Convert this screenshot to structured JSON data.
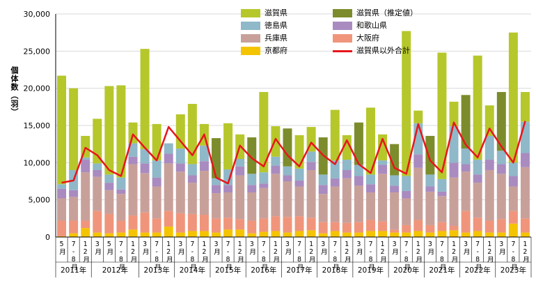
{
  "chart_data": {
    "type": "bar",
    "stacked": true,
    "ylabel": "個体数（羽）",
    "ylim": [
      0,
      30000
    ],
    "yticks": [
      "0",
      "5,000",
      "10,000",
      "15,000",
      "20,000",
      "25,000",
      "30,000"
    ],
    "categories": [
      "5月",
      "7-8月",
      "12月",
      "3月",
      "5月",
      "7-8月",
      "12月",
      "3月",
      "7-8月",
      "12月",
      "3月",
      "7-8月",
      "12月",
      "3月",
      "7-8月",
      "12月",
      "3月",
      "7-8月",
      "12月",
      "3月",
      "7-8月",
      "12月",
      "3月",
      "7-8月",
      "12月",
      "3月",
      "7-8月",
      "12月",
      "3月",
      "7-8月",
      "12月",
      "3月",
      "7-8月",
      "12月",
      "3月",
      "7-8月",
      "12月",
      "3月",
      "7-8月",
      "12月"
    ],
    "year_groups": [
      {
        "label": "2011年",
        "start": 0,
        "count": 3
      },
      {
        "label": "2012年",
        "start": 3,
        "count": 4
      },
      {
        "label": "2013年",
        "start": 7,
        "count": 3
      },
      {
        "label": "2014年",
        "start": 10,
        "count": 3
      },
      {
        "label": "2015年",
        "start": 13,
        "count": 3
      },
      {
        "label": "2016年",
        "start": 16,
        "count": 3
      },
      {
        "label": "2017年",
        "start": 19,
        "count": 3
      },
      {
        "label": "2018年",
        "start": 22,
        "count": 3
      },
      {
        "label": "2019年",
        "start": 25,
        "count": 3
      },
      {
        "label": "2020年",
        "start": 28,
        "count": 3
      },
      {
        "label": "2021年",
        "start": 31,
        "count": 3
      },
      {
        "label": "2022年",
        "start": 34,
        "count": 3
      },
      {
        "label": "2023年",
        "start": 37,
        "count": 3
      }
    ],
    "series": [
      {
        "name": "京都府",
        "color": "#f5c400",
        "values": [
          100,
          500,
          1200,
          600,
          500,
          600,
          1000,
          600,
          600,
          1400,
          600,
          800,
          800,
          600,
          1000,
          1000,
          500,
          700,
          800,
          600,
          800,
          900,
          500,
          800,
          600,
          600,
          800,
          800,
          600,
          600,
          800,
          600,
          800,
          900,
          600,
          800,
          600,
          600,
          1800,
          600
        ]
      },
      {
        "name": "大阪府",
        "color": "#f0957b",
        "values": [
          2100,
          1700,
          1000,
          2900,
          2600,
          1600,
          1900,
          2700,
          1900,
          2100,
          2600,
          2300,
          2200,
          1900,
          1600,
          1400,
          1700,
          1800,
          2000,
          2100,
          2000,
          1700,
          1500,
          1200,
          1300,
          1400,
          1500,
          1300,
          400,
          1000,
          1500,
          1000,
          1200,
          600,
          2900,
          1800,
          1600,
          1800,
          1700,
          1900
        ]
      },
      {
        "name": "兵庫県",
        "color": "#c8a09a",
        "values": [
          3000,
          3200,
          6500,
          4600,
          3200,
          3600,
          6900,
          5300,
          4300,
          6400,
          5600,
          4200,
          5900,
          3400,
          3400,
          5900,
          3800,
          4100,
          5700,
          4800,
          4000,
          6400,
          3800,
          4800,
          6000,
          4900,
          3700,
          6400,
          5000,
          3600,
          7000,
          4500,
          3500,
          6500,
          5300,
          4700,
          6800,
          6100,
          3300,
          6900
        ]
      },
      {
        "name": "和歌山県",
        "color": "#a98bc0",
        "values": [
          1300,
          900,
          1700,
          900,
          1000,
          600,
          1000,
          1300,
          1200,
          1300,
          1100,
          1000,
          1300,
          1100,
          1000,
          1200,
          1000,
          600,
          1100,
          800,
          800,
          1100,
          1200,
          1100,
          1100,
          1300,
          1100,
          1200,
          900,
          1000,
          1800,
          700,
          600,
          2000,
          1000,
          1100,
          1400,
          1300,
          1400,
          1900
        ]
      },
      {
        "name": "徳島県",
        "color": "#8fb8c8",
        "values": [
          600,
          2700,
          300,
          900,
          1100,
          1600,
          1800,
          1900,
          2300,
          1400,
          2000,
          1500,
          2100,
          900,
          2100,
          1000,
          1500,
          1500,
          1200,
          1200,
          1600,
          1400,
          1400,
          2400,
          1400,
          1500,
          1300,
          600,
          1400,
          2000,
          4200,
          1600,
          1700,
          4900,
          2100,
          2000,
          3200,
          1800,
          1800,
          4200
        ]
      },
      {
        "name": "滋賀県",
        "color": "#b6c72b",
        "values": [
          14600,
          11000,
          2900,
          6000,
          11900,
          12400,
          2800,
          13500,
          4900,
          0,
          4600,
          8100,
          2900,
          0,
          6200,
          3300,
          0,
          10800,
          4100,
          0,
          4500,
          3300,
          0,
          6800,
          3300,
          0,
          9000,
          3500,
          0,
          19500,
          1700,
          0,
          17000,
          3300,
          0,
          14000,
          4100,
          0,
          17500,
          4000
        ]
      },
      {
        "name": "滋賀県（推定値）",
        "color": "#7c8c2c",
        "values": [
          0,
          0,
          0,
          0,
          0,
          0,
          0,
          0,
          0,
          0,
          0,
          0,
          0,
          5400,
          0,
          0,
          4900,
          0,
          0,
          5100,
          0,
          0,
          5000,
          0,
          0,
          5700,
          0,
          0,
          4200,
          0,
          0,
          5200,
          0,
          0,
          7200,
          0,
          0,
          7900,
          0,
          0
        ]
      }
    ],
    "line_series": {
      "name": "滋賀県以外合計",
      "color": "#e8151b",
      "values": [
        7300,
        7600,
        12000,
        11000,
        9000,
        8200,
        13800,
        12000,
        10300,
        14800,
        12900,
        11000,
        13800,
        8000,
        7200,
        12300,
        10600,
        9500,
        13200,
        11000,
        9500,
        12700,
        11000,
        9800,
        13000,
        9800,
        8600,
        13200,
        9300,
        8500,
        15200,
        10300,
        8700,
        15400,
        12400,
        10700,
        14600,
        12200,
        10000,
        15600
      ]
    },
    "legend": {
      "placement": "top-center"
    }
  }
}
